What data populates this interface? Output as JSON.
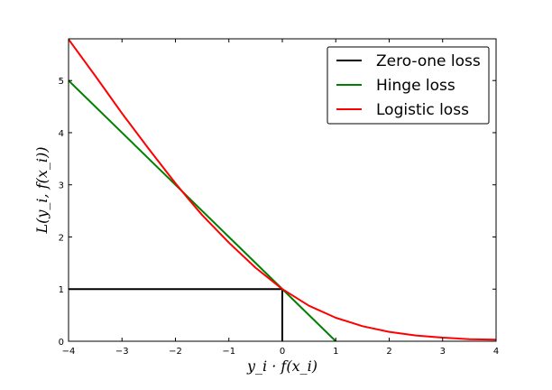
{
  "chart_data": {
    "type": "line",
    "title": "",
    "xlabel": "y_i · f(x_i)",
    "ylabel": "L(y_i, f(x_i))",
    "xlim": [
      -4,
      4
    ],
    "ylim": [
      0,
      5.8
    ],
    "x_ticks": [
      -4,
      -3,
      -2,
      -1,
      0,
      1,
      2,
      3,
      4
    ],
    "x_tick_labels": [
      "−4",
      "−3",
      "−2",
      "−1",
      "0",
      "1",
      "2",
      "3",
      "4"
    ],
    "y_ticks": [
      0,
      1,
      2,
      3,
      4,
      5
    ],
    "y_tick_labels": [
      "0",
      "1",
      "2",
      "3",
      "4",
      "5"
    ],
    "grid": false,
    "legend_position": "top-right",
    "series": [
      {
        "name": "Zero-one loss",
        "color": "#000000",
        "x": [
          -4,
          0,
          0
        ],
        "y": [
          1,
          1,
          0
        ]
      },
      {
        "name": "Hinge loss",
        "color": "#008000",
        "x": [
          -4,
          1
        ],
        "y": [
          5,
          0
        ]
      },
      {
        "name": "Logistic loss",
        "color": "#ff0000",
        "x": [
          -4,
          -3.5,
          -3,
          -2.5,
          -2,
          -1.75,
          -1.5,
          -1,
          -0.5,
          0,
          0.5,
          1,
          1.5,
          2,
          2.5,
          3,
          3.5,
          4
        ],
        "y": [
          5.79,
          5.09,
          4.37,
          3.69,
          3.03,
          2.72,
          2.42,
          1.89,
          1.41,
          1.0,
          0.68,
          0.45,
          0.29,
          0.18,
          0.11,
          0.07,
          0.04,
          0.03
        ]
      }
    ]
  }
}
